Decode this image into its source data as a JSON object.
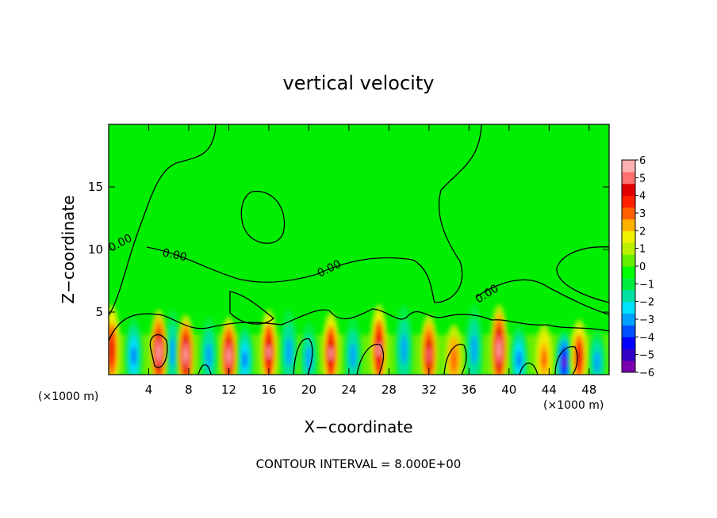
{
  "chart_data": {
    "type": "heatmap",
    "title": "vertical velocity",
    "xlabel": "X−coordinate",
    "ylabel": "Z−coordinate",
    "x_unit": "(×1000 m)",
    "z_unit": "(×1000 m)",
    "xlim": [
      0,
      50
    ],
    "ylim": [
      0,
      20
    ],
    "x_ticks": [
      "4",
      "8",
      "12",
      "16",
      "20",
      "24",
      "28",
      "32",
      "36",
      "40",
      "44",
      "48"
    ],
    "y_ticks": [
      "5",
      "10",
      "15"
    ],
    "colorbar": {
      "min": -6,
      "max": 6,
      "ticks": [
        "6",
        "5",
        "4",
        "3",
        "2",
        "1",
        "0",
        "−1",
        "−2",
        "−3",
        "−4",
        "−5",
        "−6"
      ],
      "colors": [
        "#7a00b0",
        "#3300c8",
        "#0000ff",
        "#0050ff",
        "#00a0ff",
        "#00e0ff",
        "#00e0a0",
        "#00ee40",
        "#00ff00",
        "#66ee00",
        "#bbf000",
        "#f0f000",
        "#ffb000",
        "#ff6000",
        "#ff2000",
        "#e00000",
        "#ff7070",
        "#ffb0b0"
      ]
    },
    "contour_labels": [
      "0.00",
      "0.00",
      "0.00",
      "0.00"
    ],
    "footer": "CONTOUR INTERVAL = 8.000E+00",
    "background_field": "~0 (green) above ~4 km",
    "updraft_cores": [
      {
        "x": 0.3,
        "z": 2.0,
        "w": 4.5
      },
      {
        "x": 5.0,
        "z": 1.8,
        "w": 6.0
      },
      {
        "x": 7.7,
        "z": 1.6,
        "w": 6.0
      },
      {
        "x": 12.0,
        "z": 1.5,
        "w": 6.0
      },
      {
        "x": 16.0,
        "z": 1.8,
        "w": 5.5
      },
      {
        "x": 22.2,
        "z": 1.7,
        "w": 5.5
      },
      {
        "x": 27.0,
        "z": 2.0,
        "w": 5.5
      },
      {
        "x": 32.0,
        "z": 1.6,
        "w": 5.0
      },
      {
        "x": 34.5,
        "z": 1.2,
        "w": 3.0
      },
      {
        "x": 39.0,
        "z": 2.0,
        "w": 6.0
      },
      {
        "x": 43.5,
        "z": 1.2,
        "w": 3.5
      },
      {
        "x": 47.0,
        "z": 1.4,
        "w": 4.5
      }
    ],
    "downdraft_cores": [
      {
        "x": 2.5,
        "z": 1.5,
        "w": -3.5
      },
      {
        "x": 6.4,
        "z": 1.8,
        "w": -3.0
      },
      {
        "x": 10.0,
        "z": 1.5,
        "w": -3.0
      },
      {
        "x": 13.6,
        "z": 1.2,
        "w": -3.5
      },
      {
        "x": 18.0,
        "z": 1.8,
        "w": -3.0
      },
      {
        "x": 20.0,
        "z": 1.3,
        "w": -3.0
      },
      {
        "x": 24.4,
        "z": 1.5,
        "w": -3.0
      },
      {
        "x": 29.5,
        "z": 2.0,
        "w": -3.0
      },
      {
        "x": 36.5,
        "z": 2.0,
        "w": -3.0
      },
      {
        "x": 41.0,
        "z": 1.2,
        "w": -3.5
      },
      {
        "x": 45.5,
        "z": 1.0,
        "w": -5.5
      },
      {
        "x": 48.8,
        "z": 1.0,
        "w": -3.0
      }
    ]
  }
}
